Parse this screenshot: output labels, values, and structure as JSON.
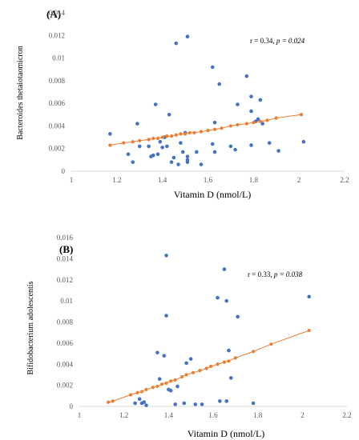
{
  "chart_data": [
    {
      "type": "scatter",
      "panel_label": "(A)",
      "xlabel": "Vitamin D (nmol/L)",
      "ylabel": "Bacteroides thetaiotaomicron",
      "xlim": [
        1,
        2.2
      ],
      "ylim": [
        0,
        0.014
      ],
      "xticks": [
        "1",
        "1.2",
        "1.4",
        "1.6",
        "1.8",
        "2",
        "2.2"
      ],
      "yticks": [
        "0",
        "0.002",
        "0.004",
        "0.006",
        "0.008",
        "0.01",
        "0.012",
        "0.014"
      ],
      "annotation": {
        "prefix": "r = 0.34, ",
        "italic": "p = 0.024"
      },
      "grid": false,
      "colors": {
        "observed": "#4472C4",
        "fitted": "#ED7D31"
      },
      "observed": [
        [
          1.17,
          0.0033
        ],
        [
          1.25,
          0.0015
        ],
        [
          1.27,
          0.0008
        ],
        [
          1.29,
          0.0042
        ],
        [
          1.3,
          0.0022
        ],
        [
          1.34,
          0.0022
        ],
        [
          1.35,
          0.0013
        ],
        [
          1.36,
          0.0014
        ],
        [
          1.37,
          0.0059
        ],
        [
          1.38,
          0.0015
        ],
        [
          1.39,
          0.0026
        ],
        [
          1.4,
          0.0021
        ],
        [
          1.41,
          0.003
        ],
        [
          1.42,
          0.0022
        ],
        [
          1.43,
          0.005
        ],
        [
          1.44,
          0.0008
        ],
        [
          1.45,
          0.0012
        ],
        [
          1.46,
          0.0113
        ],
        [
          1.47,
          0.0006
        ],
        [
          1.48,
          0.0025
        ],
        [
          1.49,
          0.0017
        ],
        [
          1.5,
          0.0034
        ],
        [
          1.51,
          0.0119
        ],
        [
          1.51,
          0.0013
        ],
        [
          1.51,
          0.001
        ],
        [
          1.51,
          0.0008
        ],
        [
          1.55,
          0.0017
        ],
        [
          1.57,
          0.0006
        ],
        [
          1.62,
          0.0092
        ],
        [
          1.62,
          0.0024
        ],
        [
          1.63,
          0.0043
        ],
        [
          1.63,
          0.0017
        ],
        [
          1.65,
          0.0077
        ],
        [
          1.7,
          0.0022
        ],
        [
          1.72,
          0.0019
        ],
        [
          1.73,
          0.0059
        ],
        [
          1.77,
          0.0084
        ],
        [
          1.79,
          0.0053
        ],
        [
          1.79,
          0.0066
        ],
        [
          1.79,
          0.0023
        ],
        [
          1.81,
          0.0044
        ],
        [
          1.82,
          0.0046
        ],
        [
          1.83,
          0.0063
        ],
        [
          1.84,
          0.0042
        ],
        [
          1.87,
          0.0025
        ],
        [
          1.91,
          0.0018
        ],
        [
          2.02,
          0.0026
        ]
      ],
      "fitted": [
        [
          1.17,
          0.0023
        ],
        [
          1.23,
          0.0025
        ],
        [
          1.27,
          0.0026
        ],
        [
          1.3,
          0.0027
        ],
        [
          1.34,
          0.0028
        ],
        [
          1.36,
          0.0029
        ],
        [
          1.38,
          0.0029
        ],
        [
          1.4,
          0.003
        ],
        [
          1.42,
          0.0031
        ],
        [
          1.44,
          0.0031
        ],
        [
          1.46,
          0.0032
        ],
        [
          1.48,
          0.0033
        ],
        [
          1.5,
          0.0033
        ],
        [
          1.52,
          0.0034
        ],
        [
          1.54,
          0.0034
        ],
        [
          1.57,
          0.0035
        ],
        [
          1.6,
          0.0036
        ],
        [
          1.63,
          0.0037
        ],
        [
          1.66,
          0.0038
        ],
        [
          1.7,
          0.004
        ],
        [
          1.73,
          0.0041
        ],
        [
          1.77,
          0.0042
        ],
        [
          1.8,
          0.0043
        ],
        [
          1.83,
          0.0044
        ],
        [
          1.86,
          0.0045
        ],
        [
          1.9,
          0.0047
        ],
        [
          2.01,
          0.005
        ]
      ]
    },
    {
      "type": "scatter",
      "panel_label": "(B)",
      "xlabel": "Vitamin D (nmol/L)",
      "ylabel": "Bifidobacterium adolescentis",
      "xlim": [
        1,
        2.2
      ],
      "ylim": [
        0,
        0.016
      ],
      "xticks": [
        "1",
        "1.2",
        "1.4",
        "1.6",
        "1.8",
        "2",
        "2.2"
      ],
      "yticks": [
        "0",
        "0.002",
        "0.004",
        "0.006",
        "0.008",
        "0.01",
        "0.012",
        "0.014",
        "0.016"
      ],
      "annotation": {
        "prefix": "r = 0.33, ",
        "italic": "p = 0.038"
      },
      "grid": false,
      "colors": {
        "observed": "#4472C4",
        "fitted": "#ED7D31"
      },
      "observed": [
        [
          1.25,
          0.0003
        ],
        [
          1.27,
          0.0007
        ],
        [
          1.28,
          0.0003
        ],
        [
          1.29,
          0.0004
        ],
        [
          1.3,
          0.0001
        ],
        [
          1.35,
          0.0051
        ],
        [
          1.36,
          0.0026
        ],
        [
          1.38,
          0.0048
        ],
        [
          1.39,
          0.0143
        ],
        [
          1.39,
          0.0086
        ],
        [
          1.4,
          0.0016
        ],
        [
          1.41,
          0.0015
        ],
        [
          1.43,
          0.0002
        ],
        [
          1.44,
          0.0019
        ],
        [
          1.47,
          0.0003
        ],
        [
          1.48,
          0.0041
        ],
        [
          1.5,
          0.0045
        ],
        [
          1.52,
          0.0002
        ],
        [
          1.55,
          0.0002
        ],
        [
          1.62,
          0.0103
        ],
        [
          1.63,
          0.0005
        ],
        [
          1.65,
          0.013
        ],
        [
          1.66,
          0.01
        ],
        [
          1.66,
          0.0005
        ],
        [
          1.67,
          0.0053
        ],
        [
          1.68,
          0.0027
        ],
        [
          1.71,
          0.0085
        ],
        [
          1.78,
          0.0003
        ],
        [
          2.03,
          0.0104
        ]
      ],
      "fitted": [
        [
          1.13,
          0.0004
        ],
        [
          1.15,
          0.0005
        ],
        [
          1.23,
          0.0011
        ],
        [
          1.26,
          0.0013
        ],
        [
          1.28,
          0.0014
        ],
        [
          1.3,
          0.0016
        ],
        [
          1.33,
          0.0018
        ],
        [
          1.35,
          0.0019
        ],
        [
          1.37,
          0.0021
        ],
        [
          1.39,
          0.0022
        ],
        [
          1.41,
          0.0024
        ],
        [
          1.43,
          0.0025
        ],
        [
          1.46,
          0.0028
        ],
        [
          1.48,
          0.003
        ],
        [
          1.51,
          0.0032
        ],
        [
          1.54,
          0.0034
        ],
        [
          1.57,
          0.0036
        ],
        [
          1.59,
          0.0038
        ],
        [
          1.62,
          0.004
        ],
        [
          1.65,
          0.0042
        ],
        [
          1.67,
          0.0043
        ],
        [
          1.7,
          0.0046
        ],
        [
          1.78,
          0.0052
        ],
        [
          1.86,
          0.0059
        ],
        [
          2.03,
          0.0072
        ]
      ]
    }
  ]
}
